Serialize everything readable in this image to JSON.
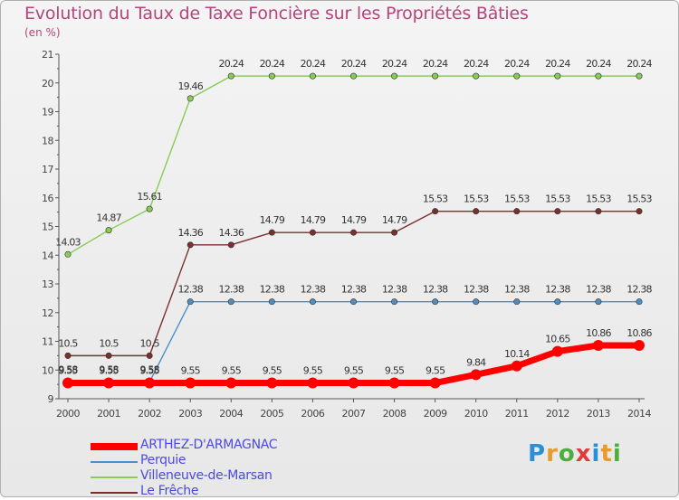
{
  "header": {
    "title": "Evolution du Taux de Taxe Foncière sur les Propriétés Bâties",
    "subtitle": "(en %)"
  },
  "logo": {
    "text": "Proxiti",
    "letter_colors": [
      "#2c8fd6",
      "#e89a2a",
      "#4caf3c",
      "#e03a3a",
      "#2c8fd6",
      "#e89a2a",
      "#4caf3c"
    ]
  },
  "chart_data": {
    "type": "line",
    "x": [
      2000,
      2001,
      2002,
      2003,
      2004,
      2005,
      2006,
      2007,
      2008,
      2009,
      2010,
      2011,
      2012,
      2013,
      2014
    ],
    "ylim": [
      9,
      21
    ],
    "yticks": [
      9,
      10,
      11,
      12,
      13,
      14,
      15,
      16,
      17,
      18,
      19,
      20,
      21
    ],
    "grid": false,
    "legend_position": "bottom-left",
    "series": [
      {
        "name": "Villeneuve-de-Marsan",
        "color": "#88cc55",
        "values": [
          14.03,
          14.87,
          15.61,
          19.46,
          20.24,
          20.24,
          20.24,
          20.24,
          20.24,
          20.24,
          20.24,
          20.24,
          20.24,
          20.24,
          20.24
        ],
        "labels": [
          "14.03",
          "14.87",
          "15.61",
          "19.46",
          "20.24",
          "20.24",
          "20.24",
          "20.24",
          "20.24",
          "20.24",
          "20.24",
          "20.24",
          "20.24",
          "20.24",
          "20.24"
        ]
      },
      {
        "name": "Le Frêche",
        "color": "#7a2f2f",
        "values": [
          10.5,
          10.5,
          10.5,
          14.36,
          14.36,
          14.79,
          14.79,
          14.79,
          14.79,
          15.53,
          15.53,
          15.53,
          15.53,
          15.53,
          15.53
        ],
        "labels": [
          "10.5",
          "10.5",
          "10.5",
          "14.36",
          "14.36",
          "14.79",
          "14.79",
          "14.79",
          "14.79",
          "15.53",
          "15.53",
          "15.53",
          "15.53",
          "15.53",
          "15.53"
        ]
      },
      {
        "name": "Perquie",
        "color": "#4a90c8",
        "values": [
          9.58,
          9.58,
          9.58,
          12.38,
          12.38,
          12.38,
          12.38,
          12.38,
          12.38,
          12.38,
          12.38,
          12.38,
          12.38,
          12.38,
          12.38
        ],
        "labels": [
          "9.58",
          "9.58",
          "9.58",
          "12.38",
          "12.38",
          "12.38",
          "12.38",
          "12.38",
          "12.38",
          "12.38",
          "12.38",
          "12.38",
          "12.38",
          "12.38",
          "12.38"
        ]
      },
      {
        "name": "ARTHEZ-D'ARMAGNAC",
        "color": "#ff0000",
        "values": [
          9.55,
          9.55,
          9.55,
          9.55,
          9.55,
          9.55,
          9.55,
          9.55,
          9.55,
          9.55,
          9.84,
          10.14,
          10.65,
          10.86,
          10.86
        ],
        "labels": [
          "9.55",
          "9.55",
          "9.55",
          "9.55",
          "9.55",
          "9.55",
          "9.55",
          "9.55",
          "9.55",
          "9.55",
          "9.84",
          "10.14",
          "10.65",
          "10.86",
          "10.86"
        ]
      }
    ],
    "legend_order": [
      "ARTHEZ-D'ARMAGNAC",
      "Perquie",
      "Villeneuve-de-Marsan",
      "Le Frêche"
    ]
  }
}
